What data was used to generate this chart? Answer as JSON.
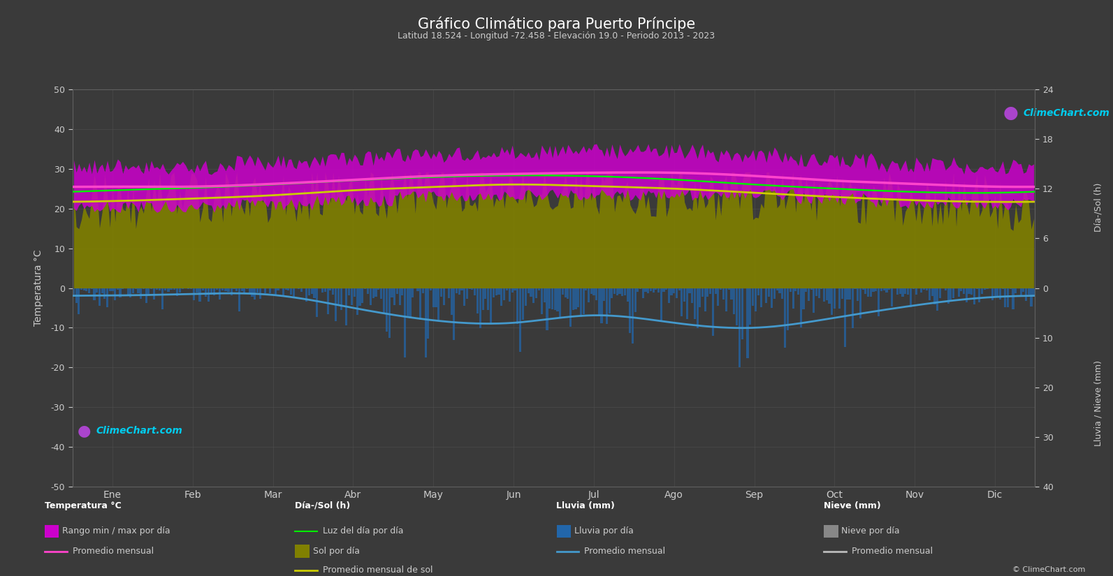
{
  "title": "Gráfico Climático para Puerto Príncipe",
  "subtitle": "Latitud 18.524 - Longitud -72.458 - Elevación 19.0 - Periodo 2013 - 2023",
  "background_color": "#3a3a3a",
  "plot_bg_color": "#3a3a3a",
  "grid_color": "#555555",
  "months": [
    "Ene",
    "Feb",
    "Mar",
    "Abr",
    "May",
    "Jun",
    "Jul",
    "Ago",
    "Sep",
    "Oct",
    "Nov",
    "Dic"
  ],
  "days_per_month": [
    31,
    28,
    31,
    30,
    31,
    30,
    31,
    31,
    30,
    31,
    30,
    31
  ],
  "temp_ylim": [
    -50,
    50
  ],
  "temp_min_daily_mean": [
    20.5,
    20.5,
    21.0,
    22.0,
    23.0,
    23.5,
    23.5,
    23.5,
    23.5,
    22.5,
    21.5,
    21.0
  ],
  "temp_max_daily_mean": [
    30.5,
    30.5,
    31.5,
    32.5,
    33.5,
    34.0,
    34.5,
    34.5,
    33.5,
    32.0,
    31.0,
    30.5
  ],
  "temp_mean_monthly": [
    25.5,
    25.5,
    26.2,
    27.2,
    28.2,
    28.7,
    29.0,
    29.0,
    28.2,
    27.0,
    26.2,
    25.5
  ],
  "temp_min_spread": 1.5,
  "temp_max_spread": 2.0,
  "sun_hours_daily_mean": [
    10.5,
    10.8,
    11.2,
    11.8,
    12.2,
    12.5,
    12.3,
    12.0,
    11.5,
    11.0,
    10.6,
    10.4
  ],
  "sun_hours_spread": 3.5,
  "sun_mean_monthly": [
    10.5,
    10.8,
    11.2,
    11.8,
    12.2,
    12.5,
    12.3,
    12.0,
    11.5,
    11.0,
    10.6,
    10.4
  ],
  "daylight_monthly": [
    11.8,
    12.1,
    12.5,
    13.0,
    13.4,
    13.6,
    13.5,
    13.1,
    12.5,
    12.0,
    11.6,
    11.5
  ],
  "rain_daily_intensity": [
    1.5,
    1.2,
    1.4,
    2.5,
    3.5,
    3.2,
    2.8,
    3.5,
    4.0,
    3.0,
    2.0,
    1.4
  ],
  "rain_mean_monthly": [
    1.5,
    1.2,
    1.4,
    4.0,
    6.5,
    7.0,
    5.5,
    7.0,
    8.0,
    6.0,
    3.5,
    1.8
  ],
  "sun_scale": 2.0833,
  "rain_scale": 1.25,
  "color_temp_band": "#cc00cc",
  "color_temp_mean": "#ff44cc",
  "color_sun_band": "#808000",
  "color_sun_mean": "#cccc00",
  "color_daylight": "#00ee00",
  "color_rain_bar": "#2266aa",
  "color_rain_mean": "#4499cc",
  "color_snow_bar": "#888888",
  "color_snow_mean": "#bbbbbb",
  "text_color": "#cccccc",
  "logo_color": "#00ccee"
}
